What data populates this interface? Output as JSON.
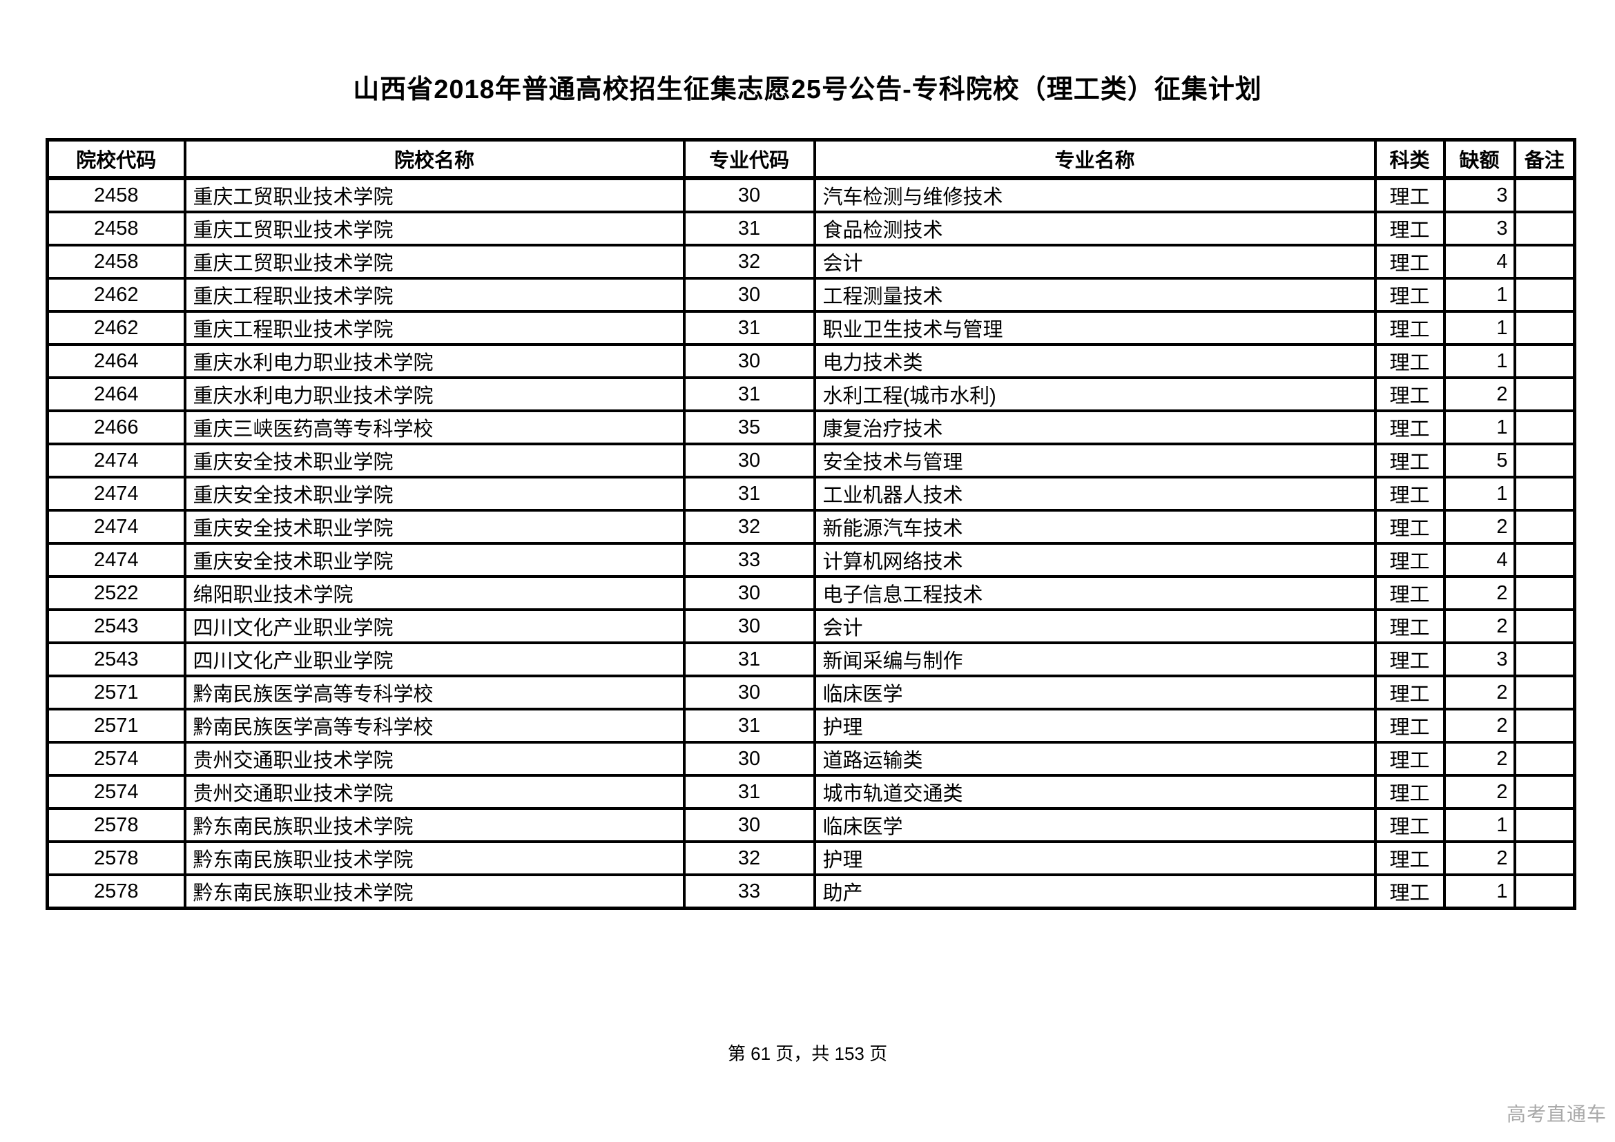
{
  "page": {
    "title": "山西省2018年普通高校招生征集志愿25号公告-专科院校（理工类）征集计划",
    "footer": "第 61 页，共 153 页",
    "watermark": "高考直通车"
  },
  "table": {
    "columns": [
      "院校代码",
      "院校名称",
      "专业代码",
      "专业名称",
      "科类",
      "缺额",
      "备注"
    ],
    "rows": [
      [
        "2458",
        "重庆工贸职业技术学院",
        "30",
        "汽车检测与维修技术",
        "理工",
        "3",
        ""
      ],
      [
        "2458",
        "重庆工贸职业技术学院",
        "31",
        "食品检测技术",
        "理工",
        "3",
        ""
      ],
      [
        "2458",
        "重庆工贸职业技术学院",
        "32",
        "会计",
        "理工",
        "4",
        ""
      ],
      [
        "2462",
        "重庆工程职业技术学院",
        "30",
        "工程测量技术",
        "理工",
        "1",
        ""
      ],
      [
        "2462",
        "重庆工程职业技术学院",
        "31",
        "职业卫生技术与管理",
        "理工",
        "1",
        ""
      ],
      [
        "2464",
        "重庆水利电力职业技术学院",
        "30",
        "电力技术类",
        "理工",
        "1",
        ""
      ],
      [
        "2464",
        "重庆水利电力职业技术学院",
        "31",
        "水利工程(城市水利)",
        "理工",
        "2",
        ""
      ],
      [
        "2466",
        "重庆三峡医药高等专科学校",
        "35",
        "康复治疗技术",
        "理工",
        "1",
        ""
      ],
      [
        "2474",
        "重庆安全技术职业学院",
        "30",
        "安全技术与管理",
        "理工",
        "5",
        ""
      ],
      [
        "2474",
        "重庆安全技术职业学院",
        "31",
        "工业机器人技术",
        "理工",
        "1",
        ""
      ],
      [
        "2474",
        "重庆安全技术职业学院",
        "32",
        "新能源汽车技术",
        "理工",
        "2",
        ""
      ],
      [
        "2474",
        "重庆安全技术职业学院",
        "33",
        "计算机网络技术",
        "理工",
        "4",
        ""
      ],
      [
        "2522",
        "绵阳职业技术学院",
        "30",
        "电子信息工程技术",
        "理工",
        "2",
        ""
      ],
      [
        "2543",
        "四川文化产业职业学院",
        "30",
        "会计",
        "理工",
        "2",
        ""
      ],
      [
        "2543",
        "四川文化产业职业学院",
        "31",
        "新闻采编与制作",
        "理工",
        "3",
        ""
      ],
      [
        "2571",
        "黔南民族医学高等专科学校",
        "30",
        "临床医学",
        "理工",
        "2",
        ""
      ],
      [
        "2571",
        "黔南民族医学高等专科学校",
        "31",
        "护理",
        "理工",
        "2",
        ""
      ],
      [
        "2574",
        "贵州交通职业技术学院",
        "30",
        "道路运输类",
        "理工",
        "2",
        ""
      ],
      [
        "2574",
        "贵州交通职业技术学院",
        "31",
        "城市轨道交通类",
        "理工",
        "2",
        ""
      ],
      [
        "2578",
        "黔东南民族职业技术学院",
        "30",
        "临床医学",
        "理工",
        "1",
        ""
      ],
      [
        "2578",
        "黔东南民族职业技术学院",
        "32",
        "护理",
        "理工",
        "2",
        ""
      ],
      [
        "2578",
        "黔东南民族职业技术学院",
        "33",
        "助产",
        "理工",
        "1",
        ""
      ]
    ]
  }
}
